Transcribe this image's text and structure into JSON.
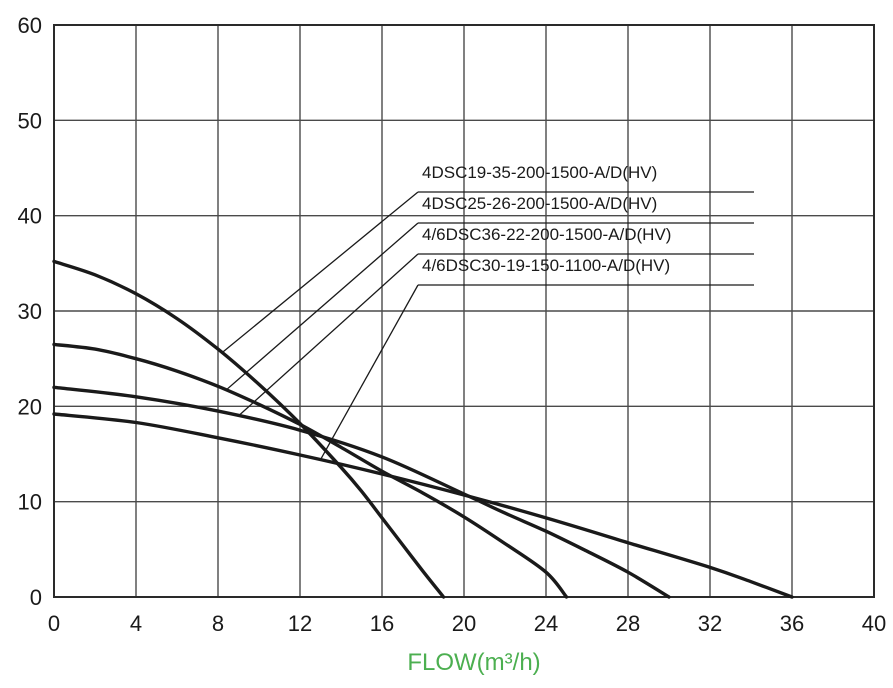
{
  "chart_data": {
    "type": "line",
    "title": "",
    "xlabel": "FLOW(m³/h)",
    "xlabel_color": "#4caf50",
    "ylabel": "",
    "xlim": [
      0,
      40
    ],
    "ylim": [
      0,
      60
    ],
    "x_ticks": [
      "0",
      "4",
      "8",
      "12",
      "16",
      "20",
      "24",
      "28",
      "32",
      "36",
      "40"
    ],
    "y_ticks": [
      "0",
      "10",
      "20",
      "30",
      "40",
      "50",
      "60"
    ],
    "grid": true,
    "legend_placement": "top-right with leader lines",
    "line_color": "#1a1a1a",
    "series": [
      {
        "name": "4DSC19-35-200-1500-A/D(HV)",
        "x": [
          0,
          2,
          4,
          6,
          8,
          10,
          12,
          14,
          15,
          16,
          17,
          18,
          19
        ],
        "y": [
          35.2,
          33.8,
          31.8,
          29.2,
          26,
          22.3,
          18.2,
          13.6,
          11.1,
          8.3,
          5.5,
          2.7,
          0
        ]
      },
      {
        "name": "4DSC25-26-200-1500-A/D(HV)",
        "x": [
          0,
          2,
          4,
          6,
          8,
          10,
          12,
          14,
          16,
          18,
          20,
          22,
          24,
          25
        ],
        "y": [
          26.5,
          26,
          25,
          23.7,
          22.1,
          20.2,
          18.1,
          15.7,
          13.2,
          10.9,
          8.4,
          5.6,
          2.6,
          0
        ]
      },
      {
        "name": "4/6DSC36-22-200-1500-A/D(HV)",
        "x": [
          0,
          4,
          8,
          12,
          16,
          20,
          22,
          24,
          26,
          28,
          30
        ],
        "y": [
          22,
          21,
          19.5,
          17.5,
          14.7,
          10.8,
          8.8,
          6.9,
          4.8,
          2.6,
          0
        ]
      },
      {
        "name": "4/6DSC30-19-150-1100-A/D(HV)",
        "x": [
          0,
          4,
          8,
          12,
          16,
          20,
          24,
          28,
          32,
          34,
          36
        ],
        "y": [
          19.2,
          18.3,
          16.7,
          14.9,
          12.9,
          10.7,
          8.3,
          5.7,
          3.1,
          1.6,
          0
        ]
      }
    ]
  }
}
